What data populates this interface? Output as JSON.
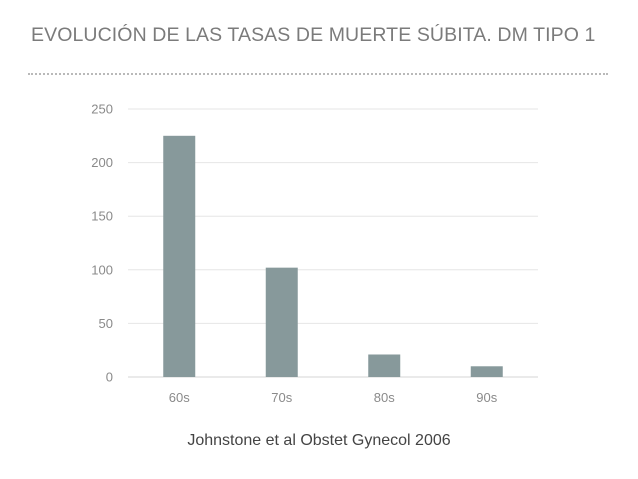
{
  "title": "EVOLUCIÓN DE LAS TASAS DE MUERTE SÚBITA. DM TIPO 1",
  "source": "Johnstone et al Obstet Gynecol 2006",
  "chart_data": {
    "type": "bar",
    "categories": [
      "60s",
      "70s",
      "80s",
      "90s"
    ],
    "values": [
      225,
      102,
      21,
      10
    ],
    "ylim": [
      0,
      250
    ],
    "yticks": [
      0,
      50,
      100,
      150,
      200,
      250
    ],
    "grid": true,
    "legend": "none",
    "bar_color": "#87999b"
  }
}
